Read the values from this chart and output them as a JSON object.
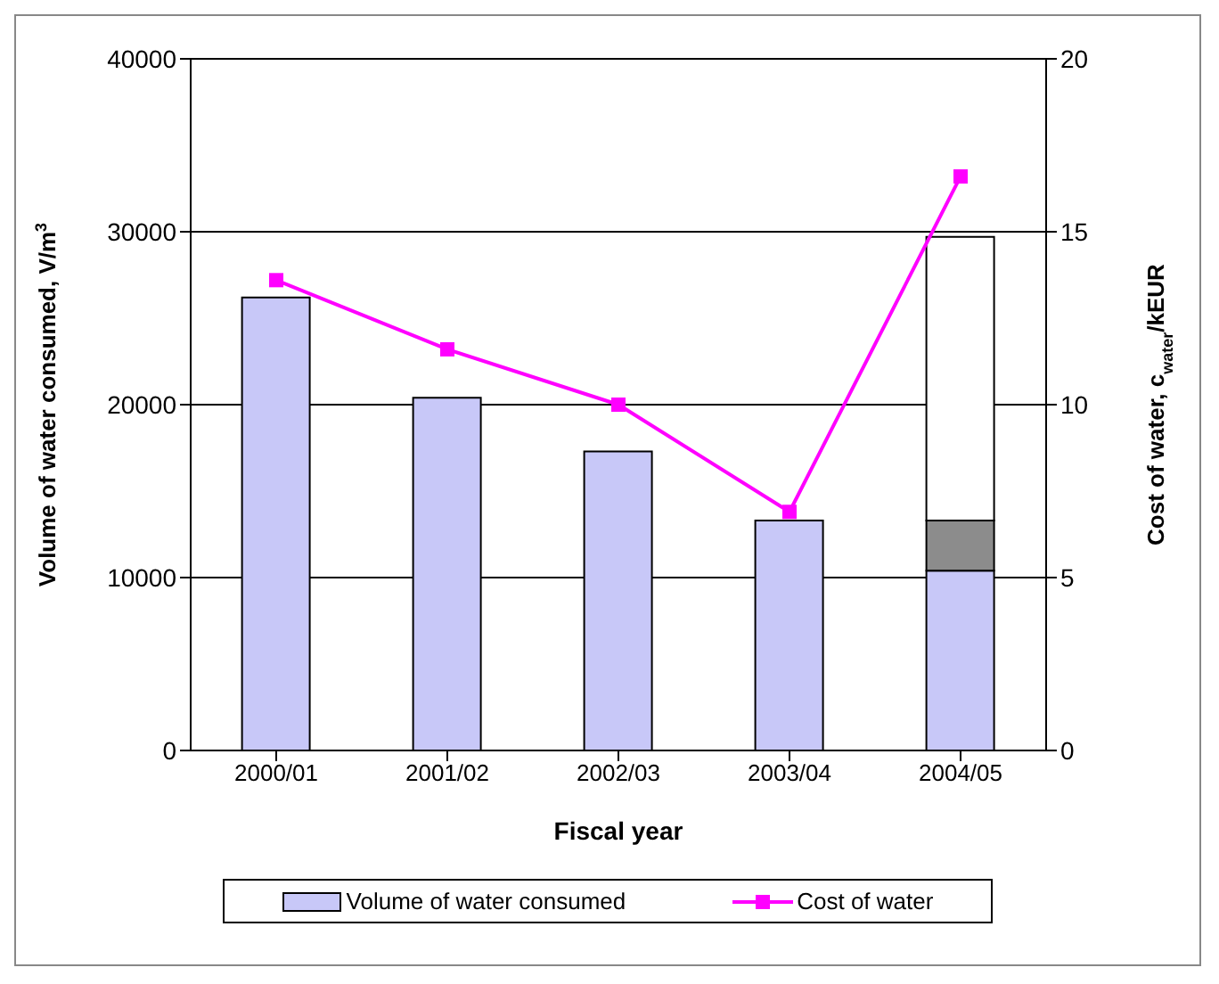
{
  "chart_data": {
    "type": "bar",
    "xlabel": "Fiscal year",
    "ylabel": "Volume of water consumed, V/m$^{3}$",
    "y2label": "Cost of water, c$_{water}$/kEUR",
    "categories": [
      "2000/01",
      "2001/02",
      "2002/03",
      "2003/04",
      "2004/05"
    ],
    "stacked": true,
    "series": [
      {
        "name": "Volume of water consumed",
        "color": "#c8c8f8",
        "values": [
          26200,
          20400,
          17300,
          13300,
          10400
        ]
      },
      {
        "color": "#8c8c8c",
        "values": [
          null,
          null,
          null,
          null,
          2900
        ]
      },
      {
        "color": "#ffffff",
        "values": [
          null,
          null,
          null,
          null,
          16400
        ]
      },
      {
        "name": "Cost of water",
        "type": "line",
        "axis": "y2",
        "color": "#ff00ff",
        "marker": "square",
        "values": [
          13.6,
          11.6,
          10.0,
          6.9,
          16.6
        ]
      }
    ],
    "ylim": [
      0,
      40000
    ],
    "yticks": [
      0,
      10000,
      20000,
      30000,
      40000
    ],
    "y2lim": [
      0,
      20
    ],
    "y2ticks": [
      0,
      5,
      10,
      15,
      20
    ],
    "grid": "y",
    "legend": "bottom"
  }
}
